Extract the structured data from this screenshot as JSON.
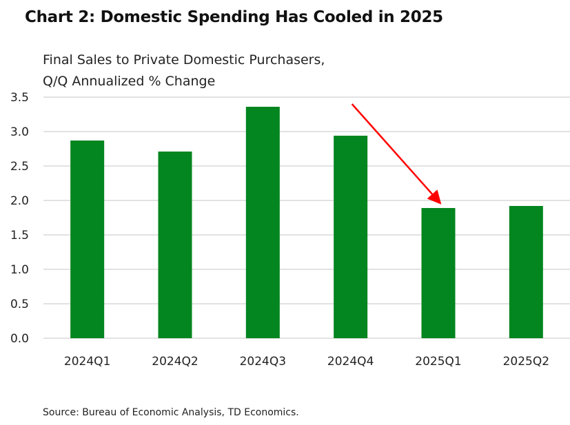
{
  "chart_data": {
    "type": "bar",
    "title": "Chart 2: Domestic Spending Has Cooled in 2025",
    "ylabel_lines": [
      "Final Sales to Private Domestic Purchasers,",
      "Q/Q Annualized % Change"
    ],
    "categories": [
      "2024Q1",
      "2024Q2",
      "2024Q3",
      "2024Q4",
      "2025Q1",
      "2025Q2"
    ],
    "values": [
      2.87,
      2.71,
      3.36,
      2.94,
      1.89,
      1.92
    ],
    "ylim": [
      0,
      3.5
    ],
    "yticks": [
      "0.0",
      "0.5",
      "1.0",
      "1.5",
      "2.0",
      "2.5",
      "3.0",
      "3.5"
    ],
    "grid": true,
    "bar_color": "#03851f",
    "annotation": {
      "type": "arrow",
      "color": "#ff0000",
      "from_category": "2024Q4",
      "to_category": "2025Q1"
    },
    "source": "Source: Bureau of Economic Analysis, TD Economics."
  }
}
